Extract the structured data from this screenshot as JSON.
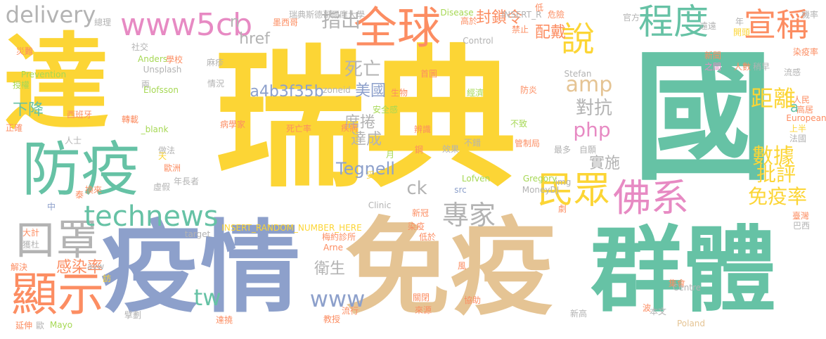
{
  "palette": {
    "yellow": "#fcd535",
    "green": "#66c2a5",
    "blue": "#8da0cb",
    "tan": "#e5c494",
    "orange": "#fc8d62",
    "pink": "#e78ac3",
    "gray": "#b3b3b3",
    "lime": "#a6d854"
  },
  "words": [
    {
      "text": "瑞典"
    },
    {
      "text": "國"
    },
    {
      "text": "達"
    },
    {
      "text": "免疫"
    },
    {
      "text": "疫情"
    },
    {
      "text": "群體"
    },
    {
      "text": "防疫"
    },
    {
      "text": "全球"
    },
    {
      "text": "www5cb"
    },
    {
      "text": "delivery"
    },
    {
      "text": "程度"
    },
    {
      "text": "宣稱"
    },
    {
      "text": "說"
    },
    {
      "text": "口罩"
    },
    {
      "text": "顯示"
    },
    {
      "text": "technews"
    },
    {
      "text": "民眾"
    },
    {
      "text": "佛系"
    },
    {
      "text": "專家"
    },
    {
      "text": "tw"
    },
    {
      "text": "www"
    },
    {
      "text": "amp"
    },
    {
      "text": "php"
    },
    {
      "text": "距離"
    },
    {
      "text": "數據"
    },
    {
      "text": "免疫率"
    },
    {
      "text": "批評"
    },
    {
      "text": "指出"
    },
    {
      "text": "封鎖令"
    },
    {
      "text": "死亡"
    },
    {
      "text": "美國"
    },
    {
      "text": "a4b3f35b"
    },
    {
      "text": "Tegnell"
    },
    {
      "text": "對抗"
    },
    {
      "text": "實施"
    },
    {
      "text": "感染率"
    },
    {
      "text": "衛生"
    },
    {
      "text": "ck"
    },
    {
      "text": "席捲"
    },
    {
      "text": "達成"
    },
    {
      "text": "配戴"
    },
    {
      "text": "下降"
    },
    {
      "text": "href"
    },
    {
      "text": "n"
    },
    {
      "text": "a"
    },
    {
      "text": "總理"
    },
    {
      "text": "瑞典斯德哥爾摩大學"
    },
    {
      "text": "Disease"
    },
    {
      "text": "INSERT_R"
    },
    {
      "text": "危險"
    },
    {
      "text": "官方"
    },
    {
      "text": "機率"
    },
    {
      "text": "高於"
    },
    {
      "text": "禁止"
    },
    {
      "text": "低"
    },
    {
      "text": "遠遠"
    },
    {
      "text": "年"
    },
    {
      "text": "開頭"
    },
    {
      "text": "Control"
    },
    {
      "text": "社交"
    },
    {
      "text": "災難"
    },
    {
      "text": "Anders"
    },
    {
      "text": "學校"
    },
    {
      "text": "Unsplash"
    },
    {
      "text": "Prevention"
    },
    {
      "text": "麻疹"
    },
    {
      "text": "首圖"
    },
    {
      "text": "新聞"
    },
    {
      "text": "之間"
    },
    {
      "text": "人數"
    },
    {
      "text": "染疫率"
    },
    {
      "text": "稍早"
    },
    {
      "text": "Stefan"
    },
    {
      "text": "流感"
    },
    {
      "text": "授權"
    },
    {
      "text": "兩"
    },
    {
      "text": "Elofsson"
    },
    {
      "text": "情況"
    },
    {
      "text": "zoneid"
    },
    {
      "text": "生物"
    },
    {
      "text": "經濟"
    },
    {
      "text": "防炎"
    },
    {
      "text": "人民"
    },
    {
      "text": "高居"
    },
    {
      "text": "西班牙"
    },
    {
      "text": "安全感"
    },
    {
      "text": "轉載"
    },
    {
      "text": "病學家"
    },
    {
      "text": "疾病"
    },
    {
      "text": "辨識"
    },
    {
      "text": "不致"
    },
    {
      "text": "管制局"
    },
    {
      "text": "正確"
    },
    {
      "text": "_blank"
    },
    {
      "text": "死亡率"
    },
    {
      "text": "效果"
    },
    {
      "text": "上半"
    },
    {
      "text": "European"
    },
    {
      "text": "法國"
    },
    {
      "text": "人士"
    },
    {
      "text": "做法"
    },
    {
      "text": "鋼"
    },
    {
      "text": "不錯"
    },
    {
      "text": "最多"
    },
    {
      "text": "自願"
    },
    {
      "text": "月"
    },
    {
      "text": "歐洲"
    },
    {
      "text": "天"
    },
    {
      "text": "妥"
    },
    {
      "text": "Lofven"
    },
    {
      "text": "Gregory"
    },
    {
      "text": "img"
    },
    {
      "text": "MoneyDJ"
    },
    {
      "text": "泰"
    },
    {
      "text": "虛假"
    },
    {
      "text": "src"
    },
    {
      "text": "Clinic"
    },
    {
      "text": "中"
    },
    {
      "text": "換來"
    },
    {
      "text": "年長者"
    },
    {
      "text": "新冠"
    },
    {
      "text": "劇"
    },
    {
      "text": "大計"
    },
    {
      "text": "target"
    },
    {
      "text": "INSERT_RANDOM_NUMBER_HERE"
    },
    {
      "text": "染疫"
    },
    {
      "text": "臺灣"
    },
    {
      "text": "巴西"
    },
    {
      "text": "獲杜"
    },
    {
      "text": "梅約診所"
    },
    {
      "text": "低於"
    },
    {
      "text": "解決"
    },
    {
      "text": "avw"
    },
    {
      "text": "Arne"
    },
    {
      "text": "風"
    },
    {
      "text": "訪"
    },
    {
      "text": "集會"
    },
    {
      "text": "Centre"
    },
    {
      "text": "關閉"
    },
    {
      "text": "協助"
    },
    {
      "text": "波"
    },
    {
      "text": "本文"
    },
    {
      "text": "新高"
    },
    {
      "text": "延伸"
    },
    {
      "text": "歐"
    },
    {
      "text": "Mayo"
    },
    {
      "text": "擘劃"
    },
    {
      "text": "達撓"
    },
    {
      "text": "教授"
    },
    {
      "text": "流行"
    },
    {
      "text": "來源"
    },
    {
      "text": "Poland"
    },
    {
      "text": "墨西哥"
    }
  ]
}
